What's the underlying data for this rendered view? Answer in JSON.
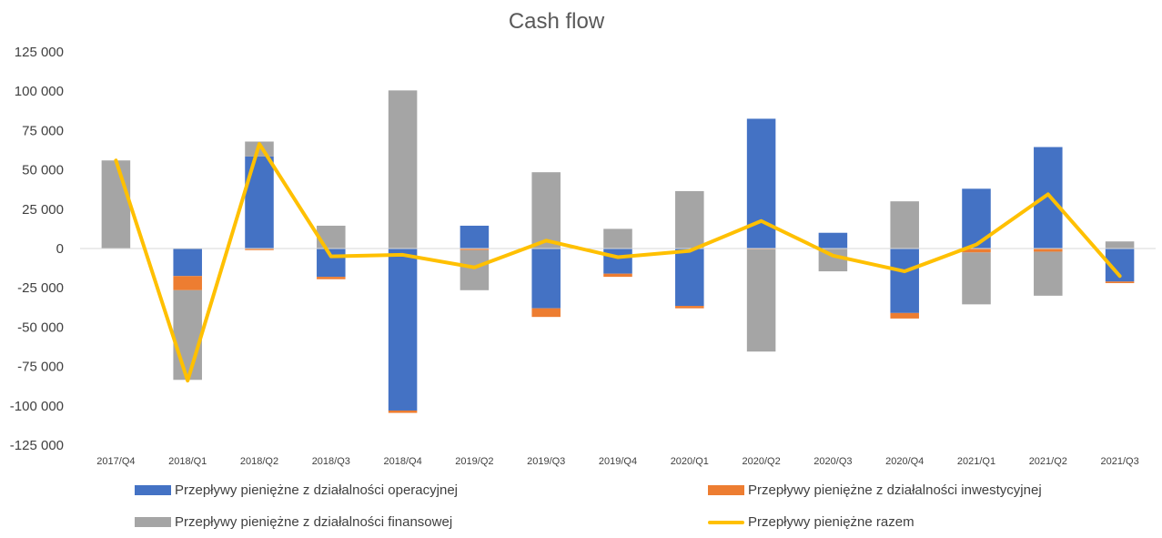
{
  "chart_data": {
    "type": "bar",
    "title": "Cash flow",
    "stacked": true,
    "categories": [
      "2017/Q4",
      "2018/Q1",
      "2018/Q2",
      "2018/Q3",
      "2018/Q4",
      "2019/Q2",
      "2019/Q3",
      "2019/Q4",
      "2020/Q1",
      "2020/Q2",
      "2020/Q3",
      "2020/Q4",
      "2021/Q1",
      "2021/Q2",
      "2021/Q3"
    ],
    "ylim": [
      -125000,
      125000
    ],
    "yticks": [
      125000,
      100000,
      75000,
      50000,
      25000,
      0,
      -25000,
      -50000,
      -75000,
      -100000,
      -125000
    ],
    "ytick_labels": [
      "125 000",
      "100 000",
      "75 000",
      "50 000",
      "25 000",
      "0",
      "-25 000",
      "-50 000",
      "-75 000",
      "-100 000",
      "-125 000"
    ],
    "series": [
      {
        "name": "Przepływy pieniężne z działalności operacyjnej",
        "kind": "bar",
        "color": "#4472C4",
        "values": [
          0,
          -17500,
          58500,
          -18000,
          -103000,
          14500,
          -38000,
          -16000,
          -36500,
          82500,
          10000,
          -41000,
          38000,
          64500,
          -21000
        ]
      },
      {
        "name": "Przepływy pieniężne z działalności inwestycyjnej",
        "kind": "bar",
        "color": "#ED7D31",
        "values": [
          0,
          -9000,
          -1000,
          -1500,
          -1500,
          -1000,
          -5500,
          -2000,
          -1500,
          -500,
          0,
          -3500,
          -2500,
          -2000,
          -1000
        ]
      },
      {
        "name": "Przepływy pieniężne z działalności finansowej",
        "kind": "bar",
        "color": "#A5A5A5",
        "values": [
          56000,
          -57000,
          9500,
          14500,
          100500,
          -25500,
          48500,
          12500,
          36500,
          -65000,
          -14500,
          30000,
          -33000,
          -28000,
          4500
        ]
      },
      {
        "name": "Przepływy pieniężne razem",
        "kind": "line",
        "color": "#FFC000",
        "values": [
          56000,
          -84000,
          66500,
          -5000,
          -4000,
          -12000,
          5000,
          -5500,
          -1500,
          17500,
          -4500,
          -14500,
          2500,
          34500,
          -17500
        ]
      }
    ],
    "legend_position": "bottom",
    "grid": false
  }
}
